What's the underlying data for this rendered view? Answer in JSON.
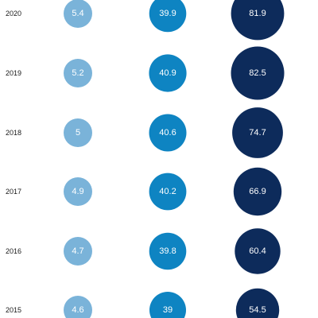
{
  "chart_data": {
    "type": "bubble",
    "title": "",
    "categories": [
      "2020",
      "2019",
      "2018",
      "2017",
      "2016",
      "2015"
    ],
    "series": [
      {
        "color": "#7ab3d9",
        "values": [
          5.4,
          5.2,
          5,
          4.9,
          4.7,
          4.6
        ]
      },
      {
        "color": "#0e84c2",
        "values": [
          39.9,
          40.9,
          40.6,
          40.2,
          39.8,
          39
        ]
      },
      {
        "color": "#0d2b5b",
        "values": [
          81.9,
          82.5,
          74.7,
          66.9,
          60.4,
          54.5
        ]
      }
    ],
    "legend": "none",
    "grid": false
  }
}
